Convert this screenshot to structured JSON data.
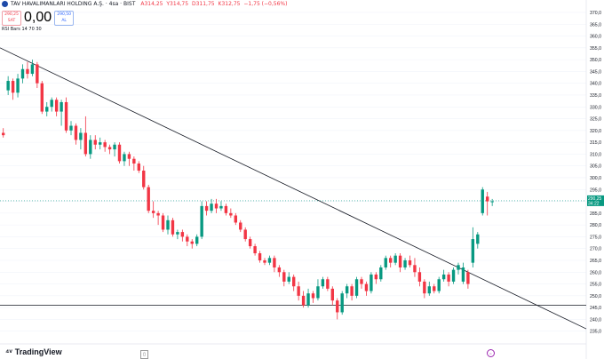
{
  "header": {
    "symbol": "TAV HAVALIMANLARI HOLDING A.Ş. · 4sa · BIST",
    "open": "A314,25",
    "high": "Y314,75",
    "low": "D311,75",
    "close": "K312,75",
    "change": "−1,75 (−0,56%)"
  },
  "sell_box": {
    "price": "290,25",
    "label": "SAT"
  },
  "spread": "0,00",
  "buy_box": {
    "price": "290,50",
    "label": "AL"
  },
  "indicator": "RSI Bars 14 70 30",
  "price_label": {
    "price": "290,25",
    "time": "34:22"
  },
  "brand": "TradingView",
  "bottom_icon": "calendar-icon",
  "colors": {
    "up": "#089981",
    "down": "#f23645",
    "line": "#131722",
    "grid": "#f0f3fa"
  },
  "chart_data": {
    "type": "candlestick",
    "title": "",
    "y_ticks": [
      235,
      240,
      245,
      250,
      255,
      260,
      265,
      270,
      275,
      280,
      285,
      290,
      295,
      300,
      305,
      310,
      315,
      320,
      325,
      330,
      335,
      340,
      345,
      350,
      355,
      360,
      365,
      370
    ],
    "y_tick_labels": [
      "235,0",
      "240,0",
      "245,0",
      "250,0",
      "255,0",
      "260,0",
      "265,0",
      "270,0",
      "275,0",
      "280,0",
      "285,0",
      "290,0",
      "295,0",
      "300,0",
      "305,0",
      "310,0",
      "315,0",
      "320,0",
      "325,0",
      "330,0",
      "335,0",
      "340,0",
      "345,0",
      "350,0",
      "355,0",
      "360,0",
      "365,0",
      "370,0"
    ],
    "ylim": [
      230,
      373
    ],
    "grid": true,
    "candles": [
      [
        319,
        318,
        321,
        317
      ],
      [
        337,
        341,
        343,
        335
      ],
      [
        341,
        336,
        342,
        333
      ],
      [
        336,
        342,
        344,
        334
      ],
      [
        342,
        346,
        348,
        340
      ],
      [
        346,
        344,
        349,
        342
      ],
      [
        344,
        348,
        350,
        343
      ],
      [
        348,
        340,
        349,
        338
      ],
      [
        340,
        328,
        341,
        327
      ],
      [
        328,
        330,
        332,
        326
      ],
      [
        330,
        333,
        334,
        328
      ],
      [
        333,
        328,
        334,
        326
      ],
      [
        328,
        332,
        333,
        322
      ],
      [
        332,
        320,
        334,
        319
      ],
      [
        320,
        322,
        324,
        318
      ],
      [
        322,
        316,
        323,
        314
      ],
      [
        316,
        319,
        321,
        312
      ],
      [
        319,
        310,
        326,
        309
      ],
      [
        310,
        316,
        318,
        308
      ],
      [
        316,
        314,
        318,
        312
      ],
      [
        314,
        315,
        317,
        312
      ],
      [
        315,
        313,
        316,
        311
      ],
      [
        313,
        312,
        314,
        310
      ],
      [
        312,
        314,
        315,
        309
      ],
      [
        314,
        307,
        315,
        306
      ],
      [
        307,
        310,
        311,
        305
      ],
      [
        310,
        308,
        311,
        305
      ],
      [
        308,
        306,
        309,
        303
      ],
      [
        306,
        303,
        307,
        302
      ],
      [
        303,
        296,
        305,
        295
      ],
      [
        296,
        286,
        297,
        285
      ],
      [
        286,
        285,
        290,
        283
      ],
      [
        285,
        284,
        286,
        280
      ],
      [
        284,
        278,
        285,
        277
      ],
      [
        278,
        282,
        284,
        276
      ],
      [
        282,
        276,
        283,
        275
      ],
      [
        276,
        277,
        278,
        274
      ],
      [
        277,
        275,
        278,
        273
      ],
      [
        275,
        273,
        276,
        271
      ],
      [
        273,
        272,
        274,
        270
      ],
      [
        272,
        275,
        276,
        271
      ],
      [
        275,
        288,
        290,
        274
      ],
      [
        288,
        286,
        290,
        284
      ],
      [
        286,
        289,
        291,
        285
      ],
      [
        289,
        287,
        291,
        285
      ],
      [
        287,
        288,
        290,
        286
      ],
      [
        288,
        285,
        289,
        284
      ],
      [
        285,
        284,
        287,
        283
      ],
      [
        284,
        281,
        285,
        280
      ],
      [
        281,
        278,
        282,
        277
      ],
      [
        278,
        274,
        279,
        273
      ],
      [
        274,
        271,
        275,
        270
      ],
      [
        271,
        268,
        272,
        267
      ],
      [
        268,
        265,
        269,
        264
      ],
      [
        265,
        264,
        266,
        263
      ],
      [
        264,
        266,
        267,
        263
      ],
      [
        266,
        262,
        267,
        260
      ],
      [
        262,
        260,
        263,
        258
      ],
      [
        260,
        256,
        261,
        254
      ],
      [
        256,
        258,
        260,
        255
      ],
      [
        258,
        254,
        259,
        252
      ],
      [
        254,
        250,
        256,
        248
      ],
      [
        250,
        246,
        252,
        245
      ],
      [
        246,
        251,
        253,
        245
      ],
      [
        251,
        249,
        252,
        247
      ],
      [
        249,
        254,
        257,
        248
      ],
      [
        254,
        257,
        258,
        253
      ],
      [
        257,
        253,
        258,
        252
      ],
      [
        253,
        248,
        254,
        246
      ],
      [
        248,
        243,
        249,
        240
      ],
      [
        243,
        251,
        252,
        242
      ],
      [
        251,
        254,
        255,
        249
      ],
      [
        254,
        250,
        255,
        248
      ],
      [
        250,
        257,
        258,
        249
      ],
      [
        257,
        255,
        258,
        253
      ],
      [
        255,
        252,
        256,
        250
      ],
      [
        252,
        259,
        260,
        251
      ],
      [
        259,
        257,
        260,
        255
      ],
      [
        257,
        262,
        263,
        256
      ],
      [
        262,
        266,
        267,
        261
      ],
      [
        266,
        264,
        267,
        262
      ],
      [
        264,
        267,
        268,
        263
      ],
      [
        267,
        262,
        268,
        260
      ],
      [
        262,
        265,
        266,
        261
      ],
      [
        265,
        263,
        267,
        262
      ],
      [
        263,
        260,
        266,
        258
      ],
      [
        260,
        256,
        262,
        254
      ],
      [
        256,
        251,
        257,
        249
      ],
      [
        251,
        254,
        256,
        250
      ],
      [
        254,
        252,
        255,
        251
      ],
      [
        252,
        257,
        258,
        251
      ],
      [
        257,
        259,
        261,
        256
      ],
      [
        259,
        256,
        260,
        254
      ],
      [
        256,
        261,
        262,
        255
      ],
      [
        261,
        263,
        264,
        259
      ],
      [
        256,
        262,
        264,
        255
      ],
      [
        260,
        255,
        261,
        253
      ],
      [
        264,
        274,
        279,
        262
      ],
      [
        272,
        276,
        277,
        270
      ],
      [
        285,
        295,
        296,
        284
      ],
      [
        292,
        290,
        294,
        284
      ],
      [
        290,
        290,
        291,
        288
      ]
    ],
    "trendline": {
      "start_y": 355,
      "end_y": 236
    },
    "support": 246,
    "current_price_line": 290.25
  }
}
